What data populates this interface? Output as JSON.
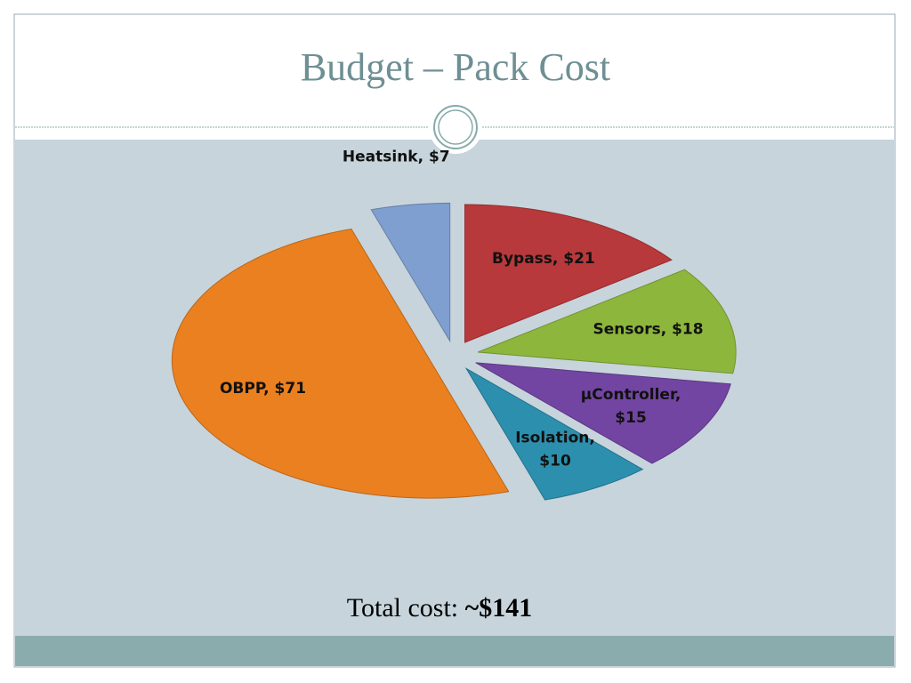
{
  "chart_data": {
    "type": "pie",
    "title": "Budget – Pack Cost",
    "values": [
      7,
      21,
      18,
      15,
      10,
      71
    ],
    "value_labels": [
      "Heatsink, $7",
      "Bypass, $21",
      "Sensors, $18",
      "µController, $15",
      "Isolation, $10",
      "OBPP, $71"
    ],
    "colors": [
      "#7f9fd0",
      "#b8393b",
      "#8db63c",
      "#7345a3",
      "#2c8fae",
      "#ea8020"
    ],
    "note": "Total cost:",
    "note_emphasis": "~$141"
  }
}
